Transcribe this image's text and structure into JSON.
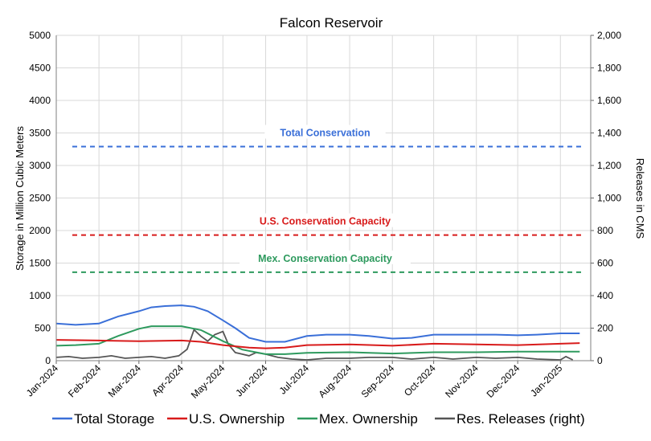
{
  "chart_data": {
    "type": "line",
    "title": "Falcon Reservoir",
    "ylabel": "Storage in Million Cubic Meters",
    "y2label": "Releases in CMS",
    "ylim": [
      0,
      5000
    ],
    "y2lim": [
      0,
      2000
    ],
    "yticks": [
      0,
      500,
      1000,
      1500,
      2000,
      2500,
      3000,
      3500,
      4000,
      4500,
      5000
    ],
    "y2ticks": [
      "0",
      "200",
      "400",
      "600",
      "800",
      "1,000",
      "1,200",
      "1,400",
      "1,600",
      "1,800",
      "2,000"
    ],
    "xticks": [
      "Jan-2024",
      "Feb-2024",
      "Mar-2024",
      "Apr-2024",
      "May-2024",
      "Jun-2024",
      "Jul-2024",
      "Aug-2024",
      "Sep-2024",
      "Oct-2024",
      "Nov-2024",
      "Dec-2024",
      "Jan-2025"
    ],
    "grid": true,
    "legend_position": "bottom",
    "reference_lines": [
      {
        "label": "Total Conservation",
        "value": 3290,
        "color": "#3a6fd8"
      },
      {
        "label": "U.S. Conservation Capacity",
        "value": 1930,
        "color": "#d81b1b"
      },
      {
        "label": "Mex. Conservation Capacity",
        "value": 1360,
        "color": "#2e9a5e"
      }
    ],
    "series": [
      {
        "name": "Total Storage",
        "color": "#3a6fd8",
        "axis": "left",
        "x": [
          "2024-01-01",
          "2024-01-15",
          "2024-02-01",
          "2024-02-15",
          "2024-03-01",
          "2024-03-10",
          "2024-03-20",
          "2024-04-01",
          "2024-04-10",
          "2024-04-20",
          "2024-05-01",
          "2024-05-10",
          "2024-05-20",
          "2024-06-01",
          "2024-06-15",
          "2024-07-01",
          "2024-07-15",
          "2024-08-01",
          "2024-08-15",
          "2024-09-01",
          "2024-09-15",
          "2024-10-01",
          "2024-10-15",
          "2024-11-01",
          "2024-11-15",
          "2024-12-01",
          "2024-12-15",
          "2025-01-01",
          "2025-01-15"
        ],
        "values": [
          570,
          550,
          570,
          680,
          760,
          820,
          840,
          850,
          830,
          760,
          620,
          500,
          350,
          290,
          290,
          380,
          400,
          400,
          380,
          340,
          350,
          400,
          400,
          400,
          400,
          390,
          400,
          420,
          420
        ]
      },
      {
        "name": "U.S. Ownership",
        "color": "#d81b1b",
        "axis": "left",
        "x": [
          "2024-01-01",
          "2024-02-01",
          "2024-03-01",
          "2024-04-01",
          "2024-04-15",
          "2024-05-01",
          "2024-05-20",
          "2024-06-01",
          "2024-06-15",
          "2024-07-01",
          "2024-08-01",
          "2024-09-01",
          "2024-10-01",
          "2024-11-01",
          "2024-12-01",
          "2025-01-01",
          "2025-01-15"
        ],
        "values": [
          320,
          310,
          300,
          310,
          290,
          240,
          200,
          190,
          200,
          240,
          250,
          230,
          260,
          250,
          240,
          260,
          270
        ]
      },
      {
        "name": "Mex. Ownership",
        "color": "#2e9a5e",
        "axis": "left",
        "x": [
          "2024-01-01",
          "2024-01-15",
          "2024-02-01",
          "2024-02-15",
          "2024-03-01",
          "2024-03-10",
          "2024-04-01",
          "2024-04-15",
          "2024-05-01",
          "2024-05-15",
          "2024-06-01",
          "2024-06-15",
          "2024-07-01",
          "2024-08-01",
          "2024-09-01",
          "2024-10-01",
          "2024-11-01",
          "2024-12-01",
          "2025-01-01",
          "2025-01-15"
        ],
        "values": [
          230,
          240,
          260,
          380,
          490,
          530,
          530,
          470,
          300,
          170,
          100,
          100,
          120,
          130,
          110,
          130,
          130,
          140,
          140,
          140
        ]
      },
      {
        "name": "Res. Releases (right)",
        "color": "#555555",
        "axis": "right",
        "x": [
          "2024-01-01",
          "2024-01-10",
          "2024-01-20",
          "2024-02-01",
          "2024-02-10",
          "2024-02-20",
          "2024-03-01",
          "2024-03-10",
          "2024-03-20",
          "2024-03-30",
          "2024-04-05",
          "2024-04-10",
          "2024-04-15",
          "2024-04-20",
          "2024-04-25",
          "2024-05-01",
          "2024-05-05",
          "2024-05-10",
          "2024-05-15",
          "2024-05-20",
          "2024-05-25",
          "2024-06-01",
          "2024-06-10",
          "2024-06-20",
          "2024-07-01",
          "2024-07-15",
          "2024-08-01",
          "2024-08-15",
          "2024-09-01",
          "2024-09-15",
          "2024-10-01",
          "2024-10-15",
          "2024-11-01",
          "2024-11-15",
          "2024-12-01",
          "2024-12-15",
          "2025-01-01",
          "2025-01-05",
          "2025-01-10"
        ],
        "values": [
          20,
          25,
          15,
          20,
          30,
          15,
          20,
          25,
          15,
          30,
          70,
          190,
          150,
          120,
          160,
          180,
          100,
          50,
          40,
          30,
          50,
          40,
          20,
          10,
          5,
          15,
          15,
          20,
          20,
          10,
          20,
          10,
          20,
          15,
          20,
          10,
          5,
          25,
          5
        ]
      }
    ]
  }
}
